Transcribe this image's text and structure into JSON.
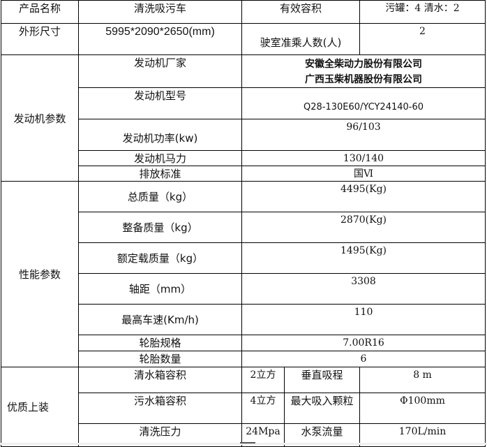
{
  "header": {
    "product_name_label": "产品名称",
    "product_name": "清洗吸污车",
    "capacity_label": "有效容积",
    "capacity": "污罐：4 清水：2"
  },
  "dimensions": {
    "label": "外形尺寸",
    "value": "5995*2090*2650(mm)",
    "cab_label": "驶室准乘人数(人)",
    "cab_value": "2"
  },
  "engine": {
    "section": "发动机参数",
    "rows": [
      {
        "label": "发动机厂家",
        "value": [
          "安徽全柴动力股份有限公司",
          "广西玉柴机器股份有限公司"
        ]
      },
      {
        "label": "发动机型号",
        "value": "Q28-130E60/YCY24140-60"
      },
      {
        "label": "发动机功率(kw)",
        "value": "96/103"
      },
      {
        "label": "发动机马力",
        "value": "130/140"
      },
      {
        "label": "排放标准",
        "value": "国Ⅵ"
      }
    ]
  },
  "performance": {
    "section": "性能参数",
    "rows": [
      {
        "label": "总质量（kg）",
        "value": "4495(Kg)"
      },
      {
        "label": "整备质量（kg）",
        "value": "2870(Kg)"
      },
      {
        "label": "额定载质量（kg）",
        "value": "1495(Kg)"
      },
      {
        "label": "轴距（mm）",
        "value": "3308"
      },
      {
        "label": "最高车速(Km/h)",
        "value": "110"
      },
      {
        "label": "轮胎规格",
        "value": "7.00R16"
      },
      {
        "label": "轮胎数量",
        "value": "6"
      }
    ]
  },
  "equipment": {
    "section": "优质上装",
    "rows": [
      {
        "label": "清水箱容积",
        "value": "2立方",
        "label2": "垂直吸程",
        "value2": "8 m"
      },
      {
        "label": "污水箱容积",
        "value": "4立方",
        "label2": "最大吸入颗粒",
        "value2": "Φ100mm"
      },
      {
        "label": "清洗压力",
        "value": "24Mpa",
        "label2": "水泵流量",
        "value2": "170L/min"
      }
    ]
  }
}
